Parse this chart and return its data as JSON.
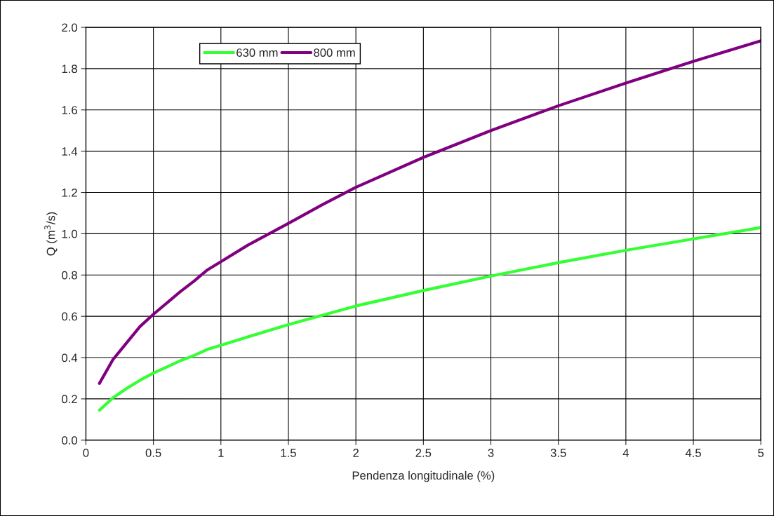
{
  "chart_data": {
    "type": "line",
    "xlabel": "Pendenza longitudinale (%)",
    "ylabel": "Q (m$^{3}$/s)",
    "xlim": [
      0,
      5
    ],
    "xticks": [
      0,
      0.5,
      1,
      1.5,
      2,
      2.5,
      3,
      3.5,
      4,
      4.5,
      5
    ],
    "ylim": [
      0,
      2
    ],
    "yticks": [
      {
        "value": 0,
        "label": "0.0"
      },
      0.2,
      0.4,
      0.6,
      0.8,
      {
        "value": 1,
        "label": "1.0"
      },
      1.2,
      1.4,
      1.6,
      1.8,
      {
        "value": 2,
        "label": "2.0"
      }
    ],
    "grid": true,
    "legend": "top",
    "marker": "none",
    "line_style": "solid",
    "series": [
      {
        "name": "630 mm",
        "color": "#33ff33",
        "x": [
          0.1,
          0.2,
          0.3,
          0.4,
          0.5,
          0.6,
          0.7,
          0.8,
          0.9,
          1,
          1.2,
          1.5,
          1.75,
          2,
          2.5,
          3,
          3.5,
          4,
          4.5,
          5
        ],
        "values": [
          0.145,
          0.205,
          0.25,
          0.29,
          0.325,
          0.355,
          0.385,
          0.41,
          0.44,
          0.46,
          0.5,
          0.56,
          0.605,
          0.65,
          0.725,
          0.795,
          0.86,
          0.92,
          0.975,
          1.03
        ]
      },
      {
        "name": "800 mm",
        "color": "#800080",
        "x": [
          0.1,
          0.2,
          0.3,
          0.4,
          0.5,
          0.6,
          0.7,
          0.8,
          0.9,
          1,
          1.2,
          1.5,
          1.75,
          2,
          2.5,
          3,
          3.5,
          4,
          4.5,
          5
        ],
        "values": [
          0.275,
          0.39,
          0.47,
          0.55,
          0.61,
          0.665,
          0.72,
          0.77,
          0.825,
          0.865,
          0.945,
          1.05,
          1.14,
          1.225,
          1.37,
          1.5,
          1.62,
          1.73,
          1.835,
          1.935
        ]
      }
    ]
  }
}
